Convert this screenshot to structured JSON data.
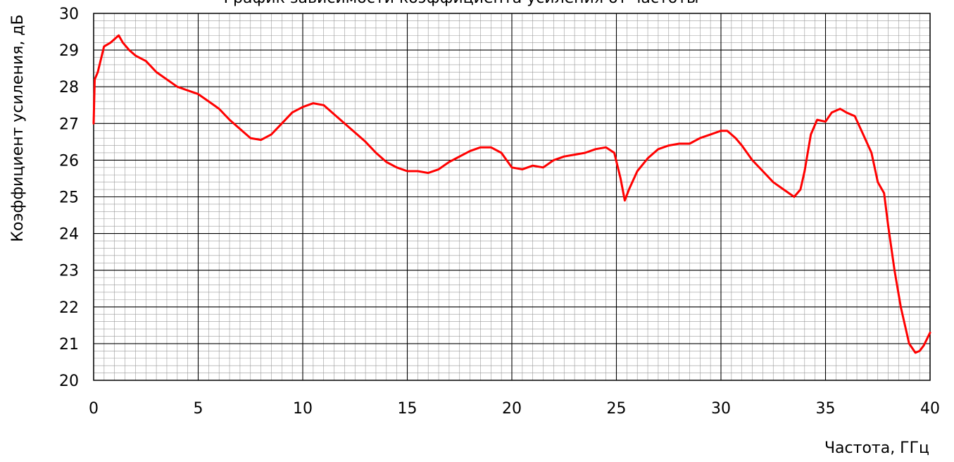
{
  "chart_data": {
    "type": "line",
    "title": "График зависимости коэффициента усиления от частоты",
    "xlabel": "Частота, ГГц",
    "ylabel": "Коэффициент усиления, дБ",
    "xlim": [
      0,
      40
    ],
    "ylim": [
      20,
      30
    ],
    "x_ticks": [
      "0",
      "5",
      "10",
      "15",
      "20",
      "25",
      "30",
      "35",
      "40"
    ],
    "y_ticks": [
      "20",
      "21",
      "22",
      "23",
      "24",
      "25",
      "26",
      "27",
      "28",
      "29",
      "30"
    ],
    "grid": "major and minor",
    "series_color": "#ff0000",
    "series": [
      {
        "x": [
          0,
          0.05,
          0.2,
          0.5,
          0.8,
          1.0,
          1.2,
          1.4,
          1.7,
          2.0,
          2.5,
          3.0,
          4.0,
          5.0,
          5.5,
          6.0,
          6.5,
          7.0,
          7.5,
          8.0,
          8.5,
          9.0,
          9.5,
          10.0,
          10.5,
          11.0,
          11.5,
          12.0,
          12.5,
          13.0,
          13.5,
          14.0,
          14.5,
          15.0,
          15.5,
          16.0,
          16.5,
          17.0,
          17.5,
          18.0,
          18.5,
          19.0,
          19.5,
          20.0,
          20.5,
          21.0,
          21.5,
          22.0,
          22.5,
          23.0,
          23.5,
          24.0,
          24.5,
          24.9,
          25.2,
          25.4,
          25.6,
          26.0,
          26.5,
          27.0,
          27.5,
          28.0,
          28.5,
          29.0,
          29.5,
          30.0,
          30.3,
          30.7,
          31.0,
          31.5,
          32.0,
          32.5,
          33.0,
          33.5,
          33.8,
          34.0,
          34.3,
          34.6,
          35.0,
          35.3,
          35.7,
          36.0,
          36.4,
          36.8,
          37.2,
          37.5,
          37.8,
          38.0,
          38.3,
          38.6,
          39.0,
          39.3,
          39.5,
          39.7,
          40.0
        ],
        "y": [
          27.0,
          28.2,
          28.4,
          29.1,
          29.2,
          29.3,
          29.4,
          29.2,
          29.0,
          28.85,
          28.7,
          28.4,
          28.0,
          27.8,
          27.6,
          27.4,
          27.1,
          26.85,
          26.6,
          26.55,
          26.7,
          27.0,
          27.3,
          27.45,
          27.55,
          27.5,
          27.25,
          27.0,
          26.75,
          26.5,
          26.2,
          25.95,
          25.8,
          25.7,
          25.7,
          25.65,
          25.75,
          25.95,
          26.1,
          26.25,
          26.35,
          26.35,
          26.2,
          25.8,
          25.75,
          25.85,
          25.8,
          26.0,
          26.1,
          26.15,
          26.2,
          26.3,
          26.35,
          26.2,
          25.5,
          24.9,
          25.2,
          25.7,
          26.05,
          26.3,
          26.4,
          26.45,
          26.45,
          26.6,
          26.7,
          26.8,
          26.8,
          26.6,
          26.4,
          26.0,
          25.7,
          25.4,
          25.2,
          25.0,
          25.2,
          25.7,
          26.7,
          27.1,
          27.05,
          27.3,
          27.4,
          27.3,
          27.2,
          26.7,
          26.2,
          25.4,
          25.1,
          24.2,
          23.0,
          22.0,
          21.0,
          20.75,
          20.8,
          20.95,
          21.3
        ]
      }
    ]
  }
}
